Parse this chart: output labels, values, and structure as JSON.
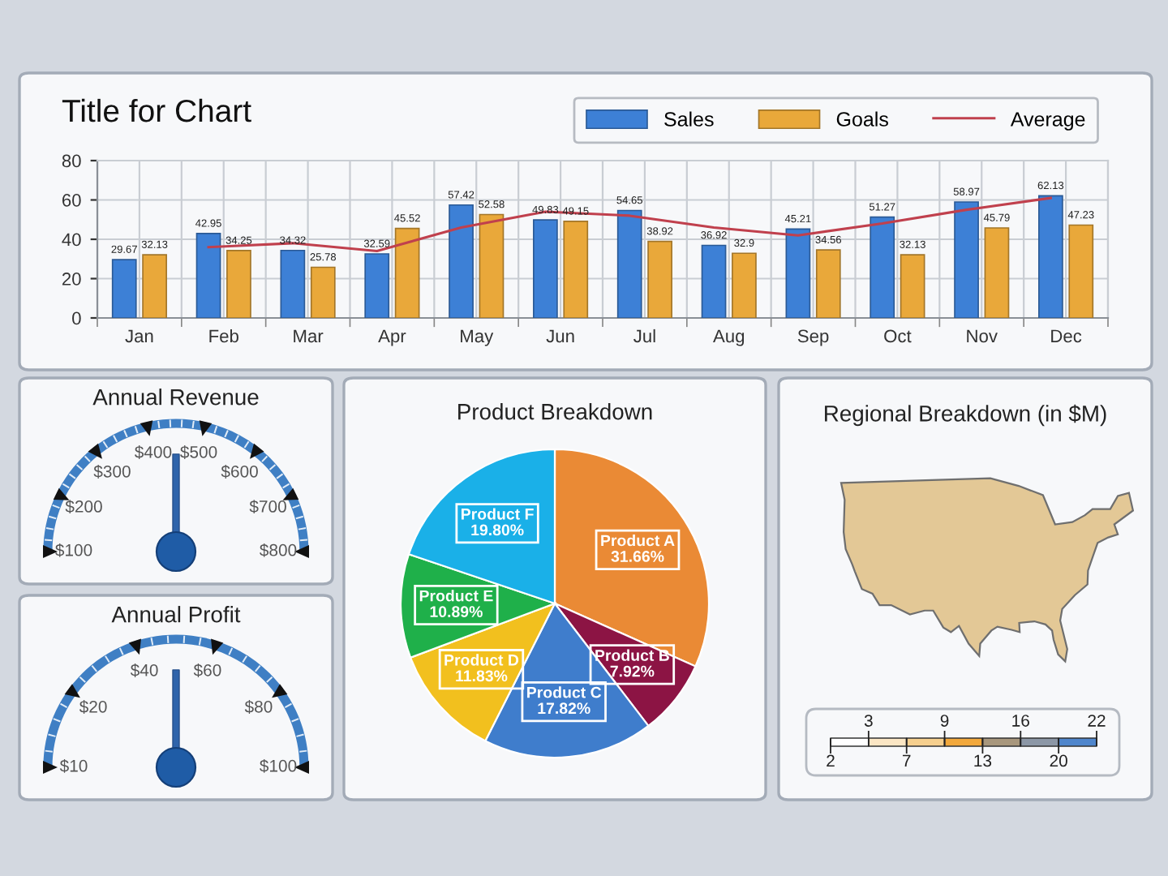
{
  "chart_data": [
    {
      "type": "bar",
      "title": "Title for Chart",
      "categories": [
        "Jan",
        "Feb",
        "Mar",
        "Apr",
        "May",
        "Jun",
        "Jul",
        "Aug",
        "Sep",
        "Oct",
        "Nov",
        "Dec"
      ],
      "series": [
        {
          "name": "Sales",
          "color": "#3d80d6",
          "values": [
            29.67,
            42.95,
            34.32,
            32.59,
            57.42,
            49.83,
            54.65,
            36.92,
            45.21,
            51.27,
            58.97,
            62.13
          ],
          "value_labels": [
            "29.67",
            "42.95",
            "34.32",
            "32.59",
            "57.42",
            "49.83",
            "54.65",
            "36.92",
            "45.21",
            "51.27",
            "58.97",
            "62.13"
          ]
        },
        {
          "name": "Goals",
          "color": "#e9a83a",
          "values": [
            32.13,
            34.25,
            25.78,
            45.52,
            52.58,
            49.15,
            38.92,
            32.9,
            34.56,
            32.13,
            45.79,
            47.23
          ],
          "value_labels": [
            "32.13",
            "34.25",
            "25.78",
            "45.52",
            "52.58",
            "49.15",
            "38.92",
            "32.9",
            "34.56",
            "32.13",
            "45.79",
            "47.23"
          ]
        },
        {
          "name": "Average",
          "type": "line",
          "color": "#c0404d",
          "values": [
            null,
            36,
            38,
            34,
            46,
            54,
            52,
            46,
            42,
            48,
            55,
            61
          ]
        }
      ],
      "ylim": [
        0,
        80
      ],
      "yticks": [
        0,
        20,
        40,
        60,
        80
      ],
      "grid": true,
      "legend": "top right"
    },
    {
      "type": "other",
      "title": "Annual Revenue",
      "annotations": [
        "$100",
        "$200",
        "$300",
        "$400",
        "$500",
        "$600",
        "$700",
        "$800"
      ]
    },
    {
      "type": "pie",
      "title": "Product Breakdown",
      "categories": [
        "Product A",
        "Product B",
        "Product C",
        "Product D",
        "Product E",
        "Product F"
      ],
      "values": [
        31.66,
        7.92,
        17.82,
        11.83,
        10.89,
        19.8
      ],
      "value_labels": [
        "31.66%",
        "7.92%",
        "17.82%",
        "11.83%",
        "10.89%",
        "19.80%"
      ],
      "colors": [
        "#ea8a35",
        "#8c1444",
        "#3f7dcc",
        "#f2c01e",
        "#1fb04a",
        "#1ab0e8"
      ]
    },
    {
      "type": "other",
      "title": "Regional Breakdown (in $M)",
      "annotations": [
        "2",
        "3",
        "7",
        "9",
        "13",
        "16",
        "20",
        "22"
      ],
      "colors": [
        "#ffffff",
        "#fbe6c4",
        "#f6cf8e",
        "#f2a83c",
        "#a8977d",
        "#8c97a6",
        "#4f86cc"
      ]
    },
    {
      "type": "other",
      "title": "Annual Profit",
      "annotations": [
        "$10",
        "$20",
        "$40",
        "$60",
        "$80",
        "$100"
      ]
    }
  ]
}
